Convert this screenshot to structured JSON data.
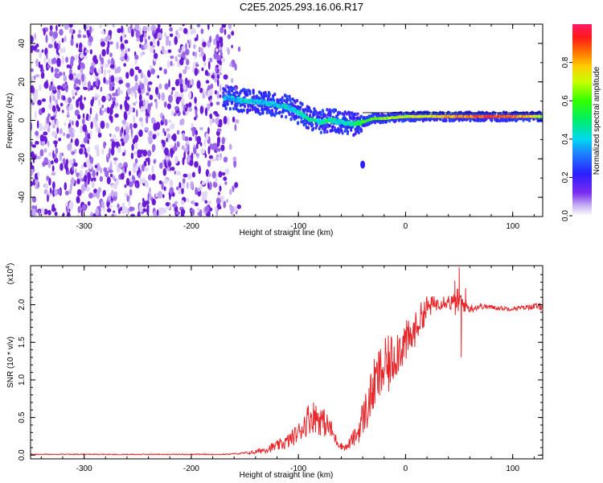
{
  "title": "C2E5.2025.293.16.06.R17",
  "colors": {
    "snr_line": "#e8262a",
    "spectrogram_ridge_low": "#4a19f0",
    "spectrogram_ridge_high": "#ff0000",
    "noise_high": "#6a1bd8",
    "noise_low": "#d9c8f5"
  },
  "chart_data": [
    {
      "id": "spectrogram",
      "type": "heatmap",
      "title": "",
      "xlabel": "Height of straight line (km)",
      "ylabel": "Frequency (Hz)",
      "xlim": [
        -350,
        128
      ],
      "ylim": [
        -50,
        50
      ],
      "xticks": [
        -300,
        -200,
        -100,
        0,
        100
      ],
      "xtick_labels": [
        "-300",
        "-200",
        "-100",
        "0",
        "100"
      ],
      "yticks": [
        -40,
        -20,
        0,
        20,
        40
      ],
      "ytick_labels": [
        "-40",
        "-20",
        "0",
        "20",
        "40"
      ],
      "noise_region_x": [
        -350,
        -155
      ],
      "ridge": {
        "x": [
          -170,
          -150,
          -130,
          -110,
          -100,
          -90,
          -80,
          -70,
          -60,
          -50,
          -40,
          -30,
          -20,
          0,
          20,
          40,
          60,
          80,
          100,
          128
        ],
        "freq": [
          12,
          10,
          9,
          7,
          4,
          1,
          -1,
          0,
          -1,
          -2,
          -1,
          1,
          1,
          2,
          2,
          2,
          2,
          2,
          2,
          2
        ],
        "amplitude": [
          0.35,
          0.4,
          0.4,
          0.4,
          0.4,
          0.45,
          0.45,
          0.45,
          0.4,
          0.45,
          0.55,
          0.6,
          0.65,
          0.7,
          0.75,
          0.8,
          0.85,
          0.9,
          0.85,
          0.7
        ]
      },
      "outlier_blob": {
        "x": -40,
        "freq": -23
      },
      "colorbar": {
        "label": "Normalized spectral amplitude",
        "range": [
          0,
          1
        ],
        "ticks": [
          0.0,
          0.2,
          0.4,
          0.6,
          0.8
        ],
        "tick_labels": [
          "0.0",
          "0.2",
          "0.4",
          "0.6",
          "0.8"
        ]
      }
    },
    {
      "id": "snr",
      "type": "line",
      "title": "",
      "xlabel": "Height of straight line (km)",
      "ylabel": "SNR (10 * v/v)",
      "y_multiplier": "(x10",
      "y_multiplier_exp": "4",
      "y_multiplier_close": ")",
      "xlim": [
        -350,
        128
      ],
      "ylim": [
        -0.05,
        2.52
      ],
      "xticks": [
        -300,
        -200,
        -100,
        0,
        100
      ],
      "xtick_labels": [
        "-300",
        "-200",
        "-100",
        "0",
        "100"
      ],
      "yticks": [
        0.0,
        0.5,
        1.0,
        1.5,
        2.0
      ],
      "ytick_labels": [
        "0.0",
        "0.5",
        "1.0",
        "1.5",
        "2.0"
      ],
      "series": [
        {
          "name": "SNR",
          "x": [
            -350,
            -250,
            -170,
            -155,
            -140,
            -130,
            -120,
            -110,
            -100,
            -95,
            -90,
            -85,
            -80,
            -75,
            -70,
            -65,
            -60,
            -55,
            -50,
            -45,
            -40,
            -35,
            -30,
            -25,
            -20,
            -15,
            -10,
            -5,
            0,
            5,
            10,
            15,
            20,
            25,
            30,
            35,
            40,
            45,
            50,
            55,
            60,
            70,
            80,
            90,
            100,
            110,
            120,
            128
          ],
          "values": [
            0.01,
            0.01,
            0.01,
            0.02,
            0.04,
            0.08,
            0.12,
            0.18,
            0.3,
            0.4,
            0.5,
            0.52,
            0.48,
            0.42,
            0.35,
            0.2,
            0.12,
            0.1,
            0.2,
            0.28,
            0.5,
            0.65,
            0.9,
            1.05,
            1.15,
            1.2,
            1.35,
            1.45,
            1.5,
            1.55,
            1.7,
            1.85,
            1.95,
            2.0,
            2.02,
            2.05,
            2.05,
            2.0,
            2.05,
            2.0,
            1.95,
            1.98,
            1.97,
            1.95,
            1.95,
            1.96,
            1.98,
            1.97
          ]
        }
      ],
      "noise_amplitude": [
        0.0,
        0.0,
        0.005,
        0.01,
        0.03,
        0.05,
        0.07,
        0.1,
        0.13,
        0.18,
        0.22,
        0.22,
        0.22,
        0.18,
        0.15,
        0.08,
        0.05,
        0.05,
        0.1,
        0.15,
        0.25,
        0.3,
        0.35,
        0.38,
        0.4,
        0.4,
        0.35,
        0.33,
        0.3,
        0.25,
        0.22,
        0.2,
        0.18,
        0.12,
        0.1,
        0.1,
        0.1,
        0.15,
        0.2,
        0.1,
        0.06,
        0.04,
        0.03,
        0.03,
        0.03,
        0.03,
        0.04,
        0.05
      ],
      "spikes": [
        {
          "x": 50,
          "y": 2.5
        },
        {
          "x": 52,
          "y": 1.3
        },
        {
          "x": 56,
          "y": 2.22
        },
        {
          "x": 46,
          "y": 2.32
        }
      ]
    }
  ]
}
